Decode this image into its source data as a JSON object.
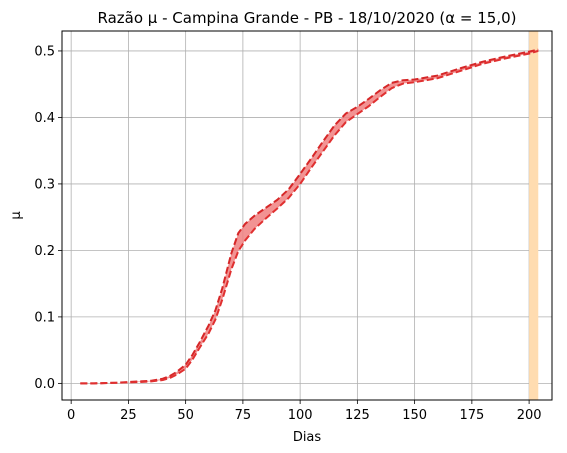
{
  "chart_data": {
    "type": "line",
    "title": "Razão μ - Campina Grande - PB - 18/10/2020 (α = 15,0)",
    "xlabel": "Dias",
    "ylabel": "μ",
    "xlim": [
      -4,
      210
    ],
    "ylim": [
      -0.025,
      0.53
    ],
    "xticks": [
      0,
      25,
      50,
      75,
      100,
      125,
      150,
      175,
      200
    ],
    "yticks": [
      0.0,
      0.1,
      0.2,
      0.3,
      0.4,
      0.5
    ],
    "xtick_labels": [
      "0",
      "25",
      "50",
      "75",
      "100",
      "125",
      "150",
      "175",
      "200"
    ],
    "ytick_labels": [
      "0.0",
      "0.1",
      "0.2",
      "0.3",
      "0.4",
      "0.5"
    ],
    "grid": true,
    "highlight_band": {
      "x_start": 200,
      "x_end": 204,
      "color": "#ffdcb0"
    },
    "band_color": "#f08080",
    "colors": {
      "upper": "#d62728",
      "lower": "#e03030"
    },
    "series": [
      {
        "x": [
          4,
          10,
          20,
          30,
          35,
          40,
          43,
          46,
          50,
          53,
          56,
          60,
          63,
          66,
          70,
          73,
          76,
          80,
          85,
          90,
          95,
          100,
          105,
          110,
          115,
          120,
          125,
          130,
          135,
          140,
          145,
          150,
          160,
          170,
          180,
          190,
          200,
          204
        ],
        "values": [
          0.0,
          0.0,
          0.001,
          0.003,
          0.004,
          0.007,
          0.011,
          0.017,
          0.028,
          0.043,
          0.061,
          0.087,
          0.11,
          0.143,
          0.196,
          0.226,
          0.24,
          0.252,
          0.264,
          0.276,
          0.292,
          0.315,
          0.339,
          0.364,
          0.388,
          0.406,
          0.416,
          0.428,
          0.441,
          0.452,
          0.456,
          0.457,
          0.463,
          0.474,
          0.484,
          0.492,
          0.499,
          0.502
        ]
      },
      {
        "x": [
          4,
          10,
          20,
          30,
          35,
          40,
          43,
          46,
          50,
          53,
          56,
          60,
          63,
          66,
          70,
          73,
          76,
          80,
          85,
          90,
          95,
          100,
          105,
          110,
          115,
          120,
          125,
          130,
          135,
          140,
          145,
          150,
          160,
          170,
          180,
          190,
          200,
          204
        ],
        "values": [
          0.0,
          0.0,
          0.001,
          0.002,
          0.003,
          0.005,
          0.008,
          0.013,
          0.022,
          0.036,
          0.053,
          0.075,
          0.096,
          0.126,
          0.172,
          0.199,
          0.215,
          0.232,
          0.248,
          0.263,
          0.279,
          0.3,
          0.325,
          0.349,
          0.373,
          0.393,
          0.405,
          0.417,
          0.431,
          0.444,
          0.451,
          0.453,
          0.459,
          0.47,
          0.481,
          0.489,
          0.496,
          0.5
        ]
      }
    ]
  }
}
